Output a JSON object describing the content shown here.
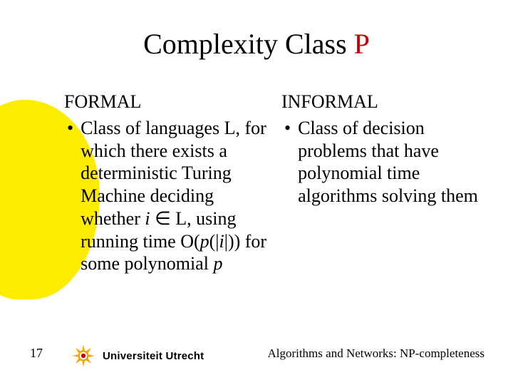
{
  "title": {
    "main": "Complexity Class ",
    "accent": "P"
  },
  "colors": {
    "accent": "#c00000",
    "blob": "#ffed00"
  },
  "left": {
    "heading": "FORMAL",
    "bullet_html": "Class of languages L, for which there exists a deterministic Turing Machine deciding whether <i>i</i> ∈ L, using running time O(<i>p</i>(|<i>i</i>|)) for some polynomial <i>p</i>"
  },
  "right": {
    "heading": "INFORMAL",
    "bullet_text": "Class of decision problems that have polynomial time algorithms solving them"
  },
  "footer": {
    "page": "17",
    "org": "Universiteit Utrecht",
    "course": "Algorithms and Networks: NP-completeness"
  }
}
